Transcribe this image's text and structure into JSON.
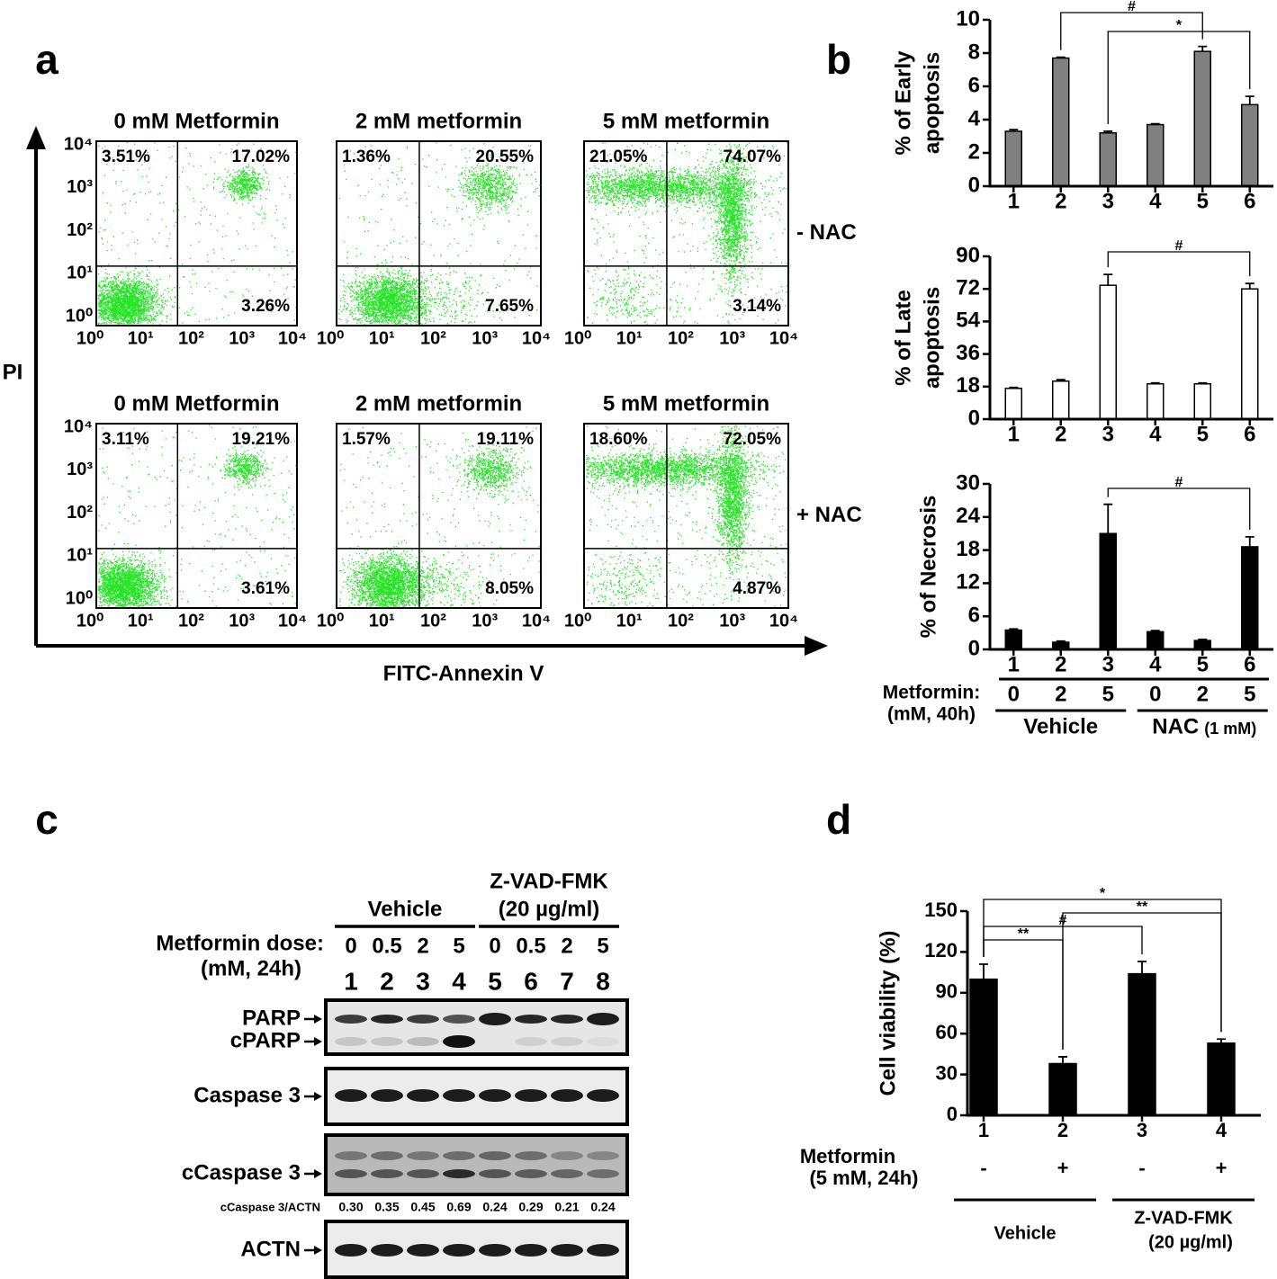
{
  "panel_labels": [
    "a",
    "b",
    "c",
    "d"
  ],
  "flow": {
    "y_label": "PI",
    "x_label": "FITC-Annexin V",
    "ticks": [
      {
        "value": 0,
        "label": "10⁰"
      },
      {
        "value": 1,
        "label": "10¹"
      },
      {
        "value": 2,
        "label": "10²"
      },
      {
        "value": 3,
        "label": "10³"
      },
      {
        "value": 4,
        "label": "10⁴"
      }
    ],
    "rows": [
      {
        "label": "- NAC",
        "plots": [
          {
            "title": "0 mM Metformin",
            "ul": "3.51%",
            "ur": "17.02%",
            "lr": "3.26%"
          },
          {
            "title": "2 mM metformin",
            "ul": "1.36%",
            "ur": "20.55%",
            "lr": "7.65%"
          },
          {
            "title": "5 mM metformin",
            "ul": "21.05%",
            "ur": "74.07%",
            "lr": "3.14%"
          }
        ]
      },
      {
        "label": "+ NAC",
        "plots": [
          {
            "title": "0 mM Metformin",
            "ul": "3.11%",
            "ur": "19.21%",
            "lr": "3.61%"
          },
          {
            "title": "2 mM metformin",
            "ul": "1.57%",
            "ur": "19.11%",
            "lr": "8.05%"
          },
          {
            "title": "5 mM metformin",
            "ul": "18.60%",
            "ur": "72.05%",
            "lr": "4.87%"
          }
        ]
      }
    ]
  },
  "chart_data": [
    {
      "type": "bar",
      "ylabel": [
        "% of Early",
        "apoptosis"
      ],
      "categories": [
        "1",
        "2",
        "3",
        "4",
        "5",
        "6"
      ],
      "values": [
        3.3,
        7.7,
        3.2,
        3.7,
        8.1,
        4.9
      ],
      "errors": [
        0.1,
        0.05,
        0.1,
        0.05,
        0.3,
        0.5
      ],
      "color": "#808080",
      "ylim": [
        0,
        10
      ],
      "yticks": [
        0,
        2,
        4,
        6,
        8,
        10
      ],
      "annotations": [
        {
          "text": "#",
          "between": [
            "2",
            "5"
          ]
        },
        {
          "text": "*",
          "between": [
            "3",
            "6"
          ]
        }
      ]
    },
    {
      "type": "bar",
      "ylabel": [
        "% of Late",
        "apoptosis"
      ],
      "categories": [
        "1",
        "2",
        "3",
        "4",
        "5",
        "6"
      ],
      "values": [
        17,
        21,
        74,
        19.5,
        19.5,
        72
      ],
      "errors": [
        0.5,
        0.8,
        6,
        0.5,
        0.5,
        3
      ],
      "color": "#ffffff",
      "ylim": [
        0,
        90
      ],
      "yticks": [
        0,
        18,
        36,
        54,
        72,
        90
      ],
      "annotations": [
        {
          "text": "#",
          "between": [
            "3",
            "6"
          ]
        }
      ]
    },
    {
      "type": "bar",
      "ylabel": [
        "% of Necrosis"
      ],
      "categories": [
        "1",
        "2",
        "3",
        "4",
        "5",
        "6"
      ],
      "values": [
        3.5,
        1.3,
        21,
        3.2,
        1.6,
        18.6
      ],
      "errors": [
        0.2,
        0.2,
        5.3,
        0.2,
        0.2,
        1.8
      ],
      "color": "#000000",
      "ylim": [
        0,
        30
      ],
      "yticks": [
        0,
        6,
        12,
        18,
        24,
        30
      ],
      "annotations": [
        {
          "text": "#",
          "between": [
            "3",
            "6"
          ]
        }
      ]
    },
    {
      "type": "bar",
      "ylabel": "Cell viability (%)",
      "categories": [
        "1",
        "2",
        "3",
        "4"
      ],
      "values": [
        100,
        38,
        104,
        53
      ],
      "errors": [
        11,
        5,
        9,
        3
      ],
      "color": "#000000",
      "ylim": [
        0,
        150
      ],
      "yticks": [
        0,
        30,
        60,
        90,
        120,
        150
      ],
      "annotations": [
        {
          "text": "*",
          "between": [
            "1",
            "4"
          ]
        },
        {
          "text": "**",
          "between": [
            "2",
            "4"
          ]
        },
        {
          "text": "#",
          "between": [
            "1",
            "3"
          ]
        },
        {
          "text": "**",
          "between": [
            "1",
            "2"
          ]
        }
      ]
    }
  ],
  "panel_b_treatment": {
    "label": [
      "Metformin:",
      "(mM, 40h)"
    ],
    "doses": [
      "0",
      "2",
      "5",
      "0",
      "2",
      "5"
    ],
    "groups": [
      {
        "name": "Vehicle"
      },
      {
        "name": "NAC",
        "note": "(1 mM)"
      }
    ]
  },
  "western": {
    "groups": [
      {
        "name": [
          "Vehicle"
        ]
      },
      {
        "name": [
          "Z-VAD-FMK",
          "(20 µg/ml)"
        ]
      }
    ],
    "dose_label": [
      "Metformin dose:",
      "(mM, 24h)"
    ],
    "doses": [
      "0",
      "0.5",
      "2",
      "5",
      "0",
      "0.5",
      "2",
      "5"
    ],
    "lanes": [
      "1",
      "2",
      "3",
      "4",
      "5",
      "6",
      "7",
      "8"
    ],
    "blots": [
      {
        "labels": [
          "PARP",
          "cPARP"
        ]
      },
      {
        "labels": [
          "Caspase 3"
        ]
      },
      {
        "labels": [
          "cCaspase 3"
        ]
      },
      {
        "labels": [
          "ACTN"
        ]
      }
    ],
    "ratio_label": "cCaspase 3/ACTN",
    "ratios": [
      "0.30",
      "0.35",
      "0.45",
      "0.69",
      "0.24",
      "0.29",
      "0.21",
      "0.24"
    ]
  },
  "panel_d_treatment": {
    "label": [
      "Metformin",
      "(5 mM, 24h)"
    ],
    "signs": [
      "-",
      "+",
      "-",
      "+"
    ],
    "groups": [
      {
        "name": [
          "Vehicle"
        ]
      },
      {
        "name": [
          "Z-VAD-FMK",
          "(20 µg/ml)"
        ]
      }
    ]
  }
}
